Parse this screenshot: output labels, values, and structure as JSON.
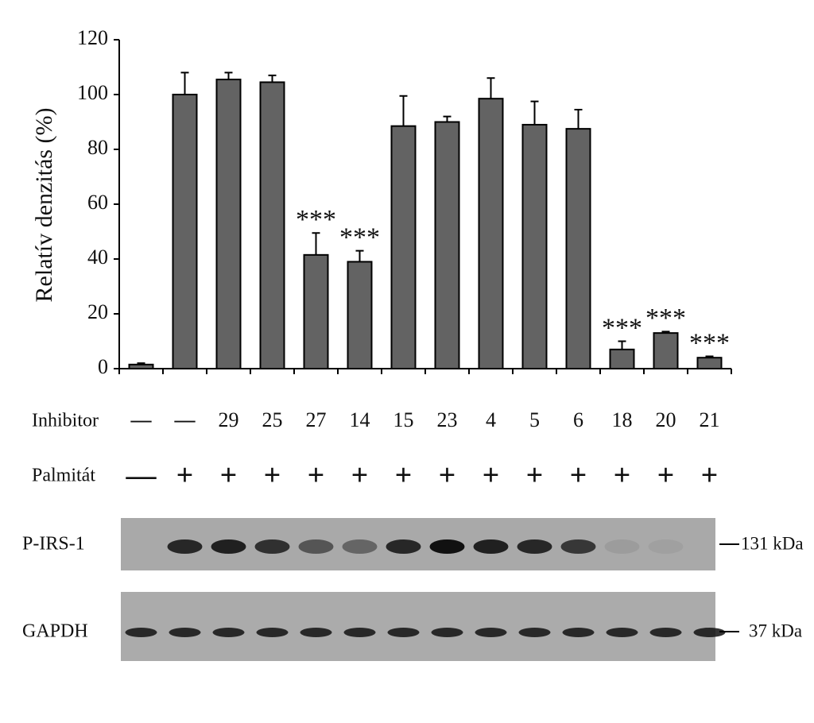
{
  "chart_data": {
    "type": "bar",
    "y_label": "Relatív denzitás (%)",
    "ylim": [
      0,
      120
    ],
    "yticks": [
      0,
      20,
      40,
      60,
      80,
      100,
      120
    ],
    "color": "#636363",
    "row_labels": {
      "inhibitor": "Inhibitor",
      "palmitate": "Palmitát"
    },
    "categories": [
      "—",
      "—",
      "29",
      "25",
      "27",
      "14",
      "15",
      "23",
      "4",
      "5",
      "6",
      "18",
      "20",
      "21"
    ],
    "palmitate": [
      "—",
      "+",
      "+",
      "+",
      "+",
      "+",
      "+",
      "+",
      "+",
      "+",
      "+",
      "+",
      "+",
      "+"
    ],
    "values": [
      1.5,
      100,
      105.5,
      104.5,
      41.5,
      39,
      88.5,
      90,
      98.5,
      89,
      87.5,
      7,
      13,
      4
    ],
    "errors": [
      0.5,
      8,
      2.5,
      2.5,
      8,
      4,
      11,
      2,
      7.5,
      8.5,
      7,
      3,
      0.5,
      0.5
    ],
    "annotations": [
      null,
      null,
      null,
      null,
      "***",
      "***",
      null,
      null,
      null,
      null,
      null,
      "***",
      "***",
      "***"
    ]
  },
  "blot": {
    "rows": [
      {
        "label": "P-IRS-1",
        "marker": "131 kDa"
      },
      {
        "label": "GAPDH",
        "marker": "37 kDa"
      }
    ]
  }
}
